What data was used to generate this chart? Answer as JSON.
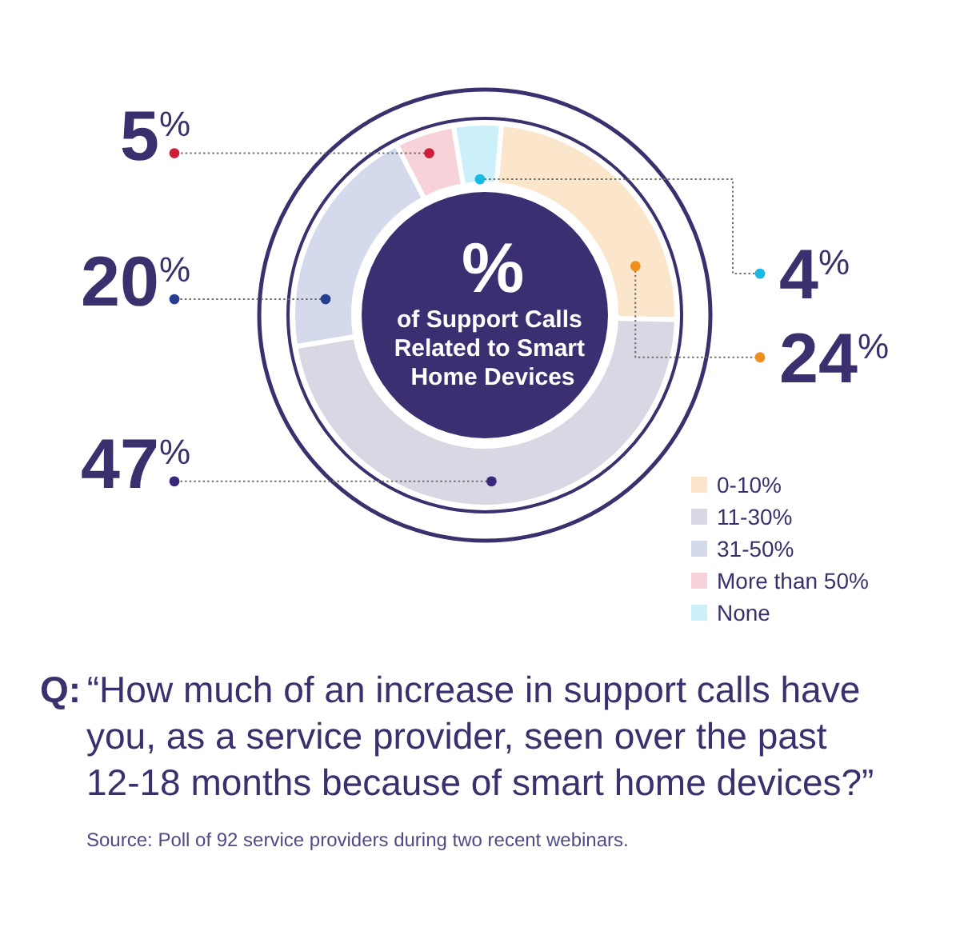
{
  "chart_data": {
    "type": "donut",
    "title": "% of Support Calls Related to Smart Home Devices",
    "categories": [
      "0-10%",
      "11-30%",
      "31-50%",
      "More than 50%",
      "None"
    ],
    "values": [
      24,
      47,
      20,
      5,
      4
    ],
    "colors": [
      "#fce6cb",
      "#dad7e5",
      "#d4d9eb",
      "#f7d3d9",
      "#ccf0fa"
    ],
    "value_labels": [
      "24$^{%}$",
      "47$^{%}$",
      "20$^{%}$",
      "5$^{%}$",
      "4$^{%}$"
    ],
    "legend": "bottom right",
    "annotations": [
      "Q: “How much of an increase in support calls have you, as a service provider, seen over the past 12-18 months because of smart home devices?”",
      "Source: Poll of 92 service providers during two recent webinars."
    ]
  }
}
